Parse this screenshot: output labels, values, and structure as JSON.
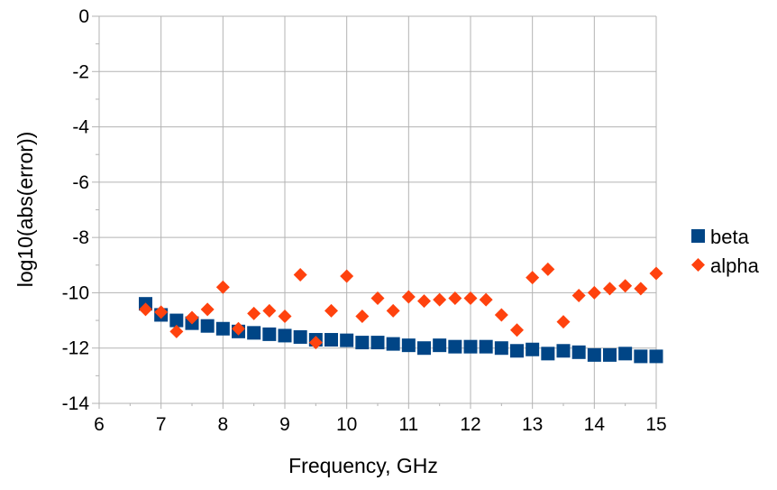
{
  "chart_data": {
    "type": "scatter",
    "title": "",
    "xlabel": "Frequency, GHz",
    "ylabel": "log10(abs(error))",
    "xlim": [
      6,
      15
    ],
    "ylim": [
      -14,
      0
    ],
    "x_ticks": [
      6,
      7,
      8,
      9,
      10,
      11,
      12,
      13,
      14,
      15
    ],
    "y_ticks": [
      0,
      -2,
      -4,
      -6,
      -8,
      -10,
      -12,
      -14
    ],
    "x_tick_labels": [
      "6",
      "7",
      "8",
      "9",
      "10",
      "11",
      "12",
      "13",
      "14",
      "15"
    ],
    "y_tick_labels": [
      "0",
      "-2",
      "-4",
      "-6",
      "-8",
      "-10",
      "-12",
      "-14"
    ],
    "grid": true,
    "legend_position": "right",
    "series": [
      {
        "name": "beta",
        "marker": "square",
        "color": "#004586",
        "points": [
          [
            6.75,
            -10.4
          ],
          [
            7.0,
            -10.8
          ],
          [
            7.25,
            -11.0
          ],
          [
            7.5,
            -11.1
          ],
          [
            7.75,
            -11.2
          ],
          [
            8.0,
            -11.3
          ],
          [
            8.25,
            -11.4
          ],
          [
            8.5,
            -11.45
          ],
          [
            8.75,
            -11.5
          ],
          [
            9.0,
            -11.55
          ],
          [
            9.25,
            -11.6
          ],
          [
            9.5,
            -11.7
          ],
          [
            9.75,
            -11.7
          ],
          [
            10.0,
            -11.72
          ],
          [
            10.25,
            -11.8
          ],
          [
            10.5,
            -11.8
          ],
          [
            10.75,
            -11.85
          ],
          [
            11.0,
            -11.9
          ],
          [
            11.25,
            -12.0
          ],
          [
            11.5,
            -11.9
          ],
          [
            11.75,
            -11.95
          ],
          [
            12.0,
            -11.95
          ],
          [
            12.25,
            -11.95
          ],
          [
            12.5,
            -12.0
          ],
          [
            12.75,
            -12.1
          ],
          [
            13.0,
            -12.05
          ],
          [
            13.25,
            -12.2
          ],
          [
            13.5,
            -12.1
          ],
          [
            13.75,
            -12.15
          ],
          [
            14.0,
            -12.25
          ],
          [
            14.25,
            -12.25
          ],
          [
            14.5,
            -12.2
          ],
          [
            14.75,
            -12.3
          ],
          [
            15.0,
            -12.3
          ]
        ]
      },
      {
        "name": "alpha",
        "marker": "diamond",
        "color": "#ff420e",
        "points": [
          [
            6.75,
            -10.6
          ],
          [
            7.0,
            -10.7
          ],
          [
            7.25,
            -11.4
          ],
          [
            7.5,
            -10.9
          ],
          [
            7.75,
            -10.6
          ],
          [
            8.0,
            -9.8
          ],
          [
            8.25,
            -11.3
          ],
          [
            8.5,
            -10.75
          ],
          [
            8.75,
            -10.65
          ],
          [
            9.0,
            -10.85
          ],
          [
            9.25,
            -9.35
          ],
          [
            9.5,
            -11.8
          ],
          [
            9.75,
            -10.65
          ],
          [
            10.0,
            -9.4
          ],
          [
            10.25,
            -10.85
          ],
          [
            10.5,
            -10.2
          ],
          [
            10.75,
            -10.65
          ],
          [
            11.0,
            -10.15
          ],
          [
            11.25,
            -10.3
          ],
          [
            11.5,
            -10.25
          ],
          [
            11.75,
            -10.2
          ],
          [
            12.0,
            -10.2
          ],
          [
            12.25,
            -10.25
          ],
          [
            12.5,
            -10.8
          ],
          [
            12.75,
            -11.35
          ],
          [
            13.0,
            -9.45
          ],
          [
            13.25,
            -9.15
          ],
          [
            13.5,
            -11.05
          ],
          [
            13.75,
            -10.1
          ],
          [
            14.0,
            -10.0
          ],
          [
            14.25,
            -9.85
          ],
          [
            14.5,
            -9.75
          ],
          [
            14.75,
            -9.85
          ],
          [
            15.0,
            -9.3
          ]
        ]
      }
    ]
  }
}
